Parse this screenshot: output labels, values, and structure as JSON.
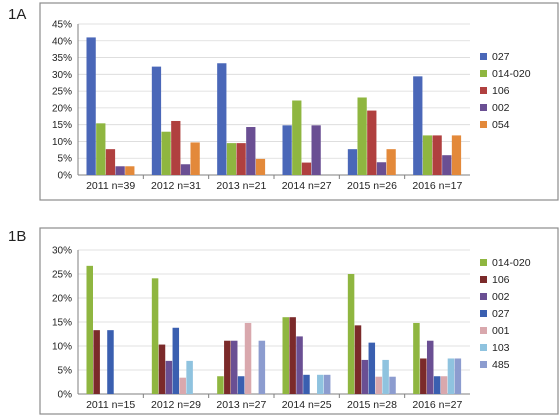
{
  "panels": [
    "1A",
    "1B"
  ],
  "chart_data": [
    {
      "type": "bar",
      "panel": "1A",
      "title": "",
      "xlabel": "",
      "ylabel": "",
      "ylim": [
        0,
        45
      ],
      "yticks": [
        "0%",
        "5%",
        "10%",
        "15%",
        "20%",
        "25%",
        "30%",
        "35%",
        "40%",
        "45%"
      ],
      "grid": true,
      "legend": "right",
      "categories": [
        "2011 n=39",
        "2012 n=31",
        "2013 n=21",
        "2014 n=27",
        "2015 n=26",
        "2016 n=17"
      ],
      "series": [
        {
          "name": "027",
          "color": "#4a67b8",
          "values": [
            41,
            32.3,
            33.3,
            14.8,
            7.7,
            29.4
          ]
        },
        {
          "name": "014-020",
          "color": "#8fb640",
          "values": [
            15.4,
            12.9,
            9.5,
            22.2,
            23.1,
            11.8
          ]
        },
        {
          "name": "106",
          "color": "#b0403f",
          "values": [
            7.7,
            16.1,
            9.5,
            3.7,
            19.2,
            11.8
          ]
        },
        {
          "name": "002",
          "color": "#6a4f93",
          "values": [
            2.6,
            3.2,
            14.3,
            14.8,
            3.8,
            5.9
          ]
        },
        {
          "name": "054",
          "color": "#e3893a",
          "values": [
            2.6,
            9.7,
            4.8,
            0,
            7.7,
            11.8
          ]
        }
      ]
    },
    {
      "type": "bar",
      "panel": "1B",
      "title": "",
      "xlabel": "",
      "ylabel": "",
      "ylim": [
        0,
        30
      ],
      "yticks": [
        "0%",
        "5%",
        "10%",
        "15%",
        "20%",
        "25%",
        "30%"
      ],
      "grid": true,
      "legend": "right",
      "categories": [
        "2011 n=15",
        "2012 n=29",
        "2013 n=27",
        "2014 n=25",
        "2015 n=28",
        "2016 n=27"
      ],
      "series": [
        {
          "name": "014-020",
          "color": "#8fb640",
          "values": [
            26.7,
            24.1,
            3.7,
            16,
            25,
            14.8
          ]
        },
        {
          "name": "106",
          "color": "#7b2a2a",
          "values": [
            13.3,
            10.3,
            11.1,
            16,
            14.3,
            7.4
          ]
        },
        {
          "name": "002",
          "color": "#6a4f93",
          "values": [
            0,
            6.9,
            11.1,
            12,
            7.1,
            11.1
          ]
        },
        {
          "name": "027",
          "color": "#3a5fb0",
          "values": [
            13.3,
            13.8,
            3.7,
            4,
            10.7,
            3.7
          ]
        },
        {
          "name": "001",
          "color": "#d9a8ad",
          "values": [
            0,
            3.4,
            14.8,
            0,
            3.6,
            3.7
          ]
        },
        {
          "name": "103",
          "color": "#8fc3df",
          "values": [
            0,
            6.9,
            0,
            4,
            7.1,
            7.4
          ]
        },
        {
          "name": "485",
          "color": "#8c9ccf",
          "values": [
            0,
            0,
            11.1,
            4,
            3.6,
            7.4
          ]
        }
      ]
    }
  ]
}
